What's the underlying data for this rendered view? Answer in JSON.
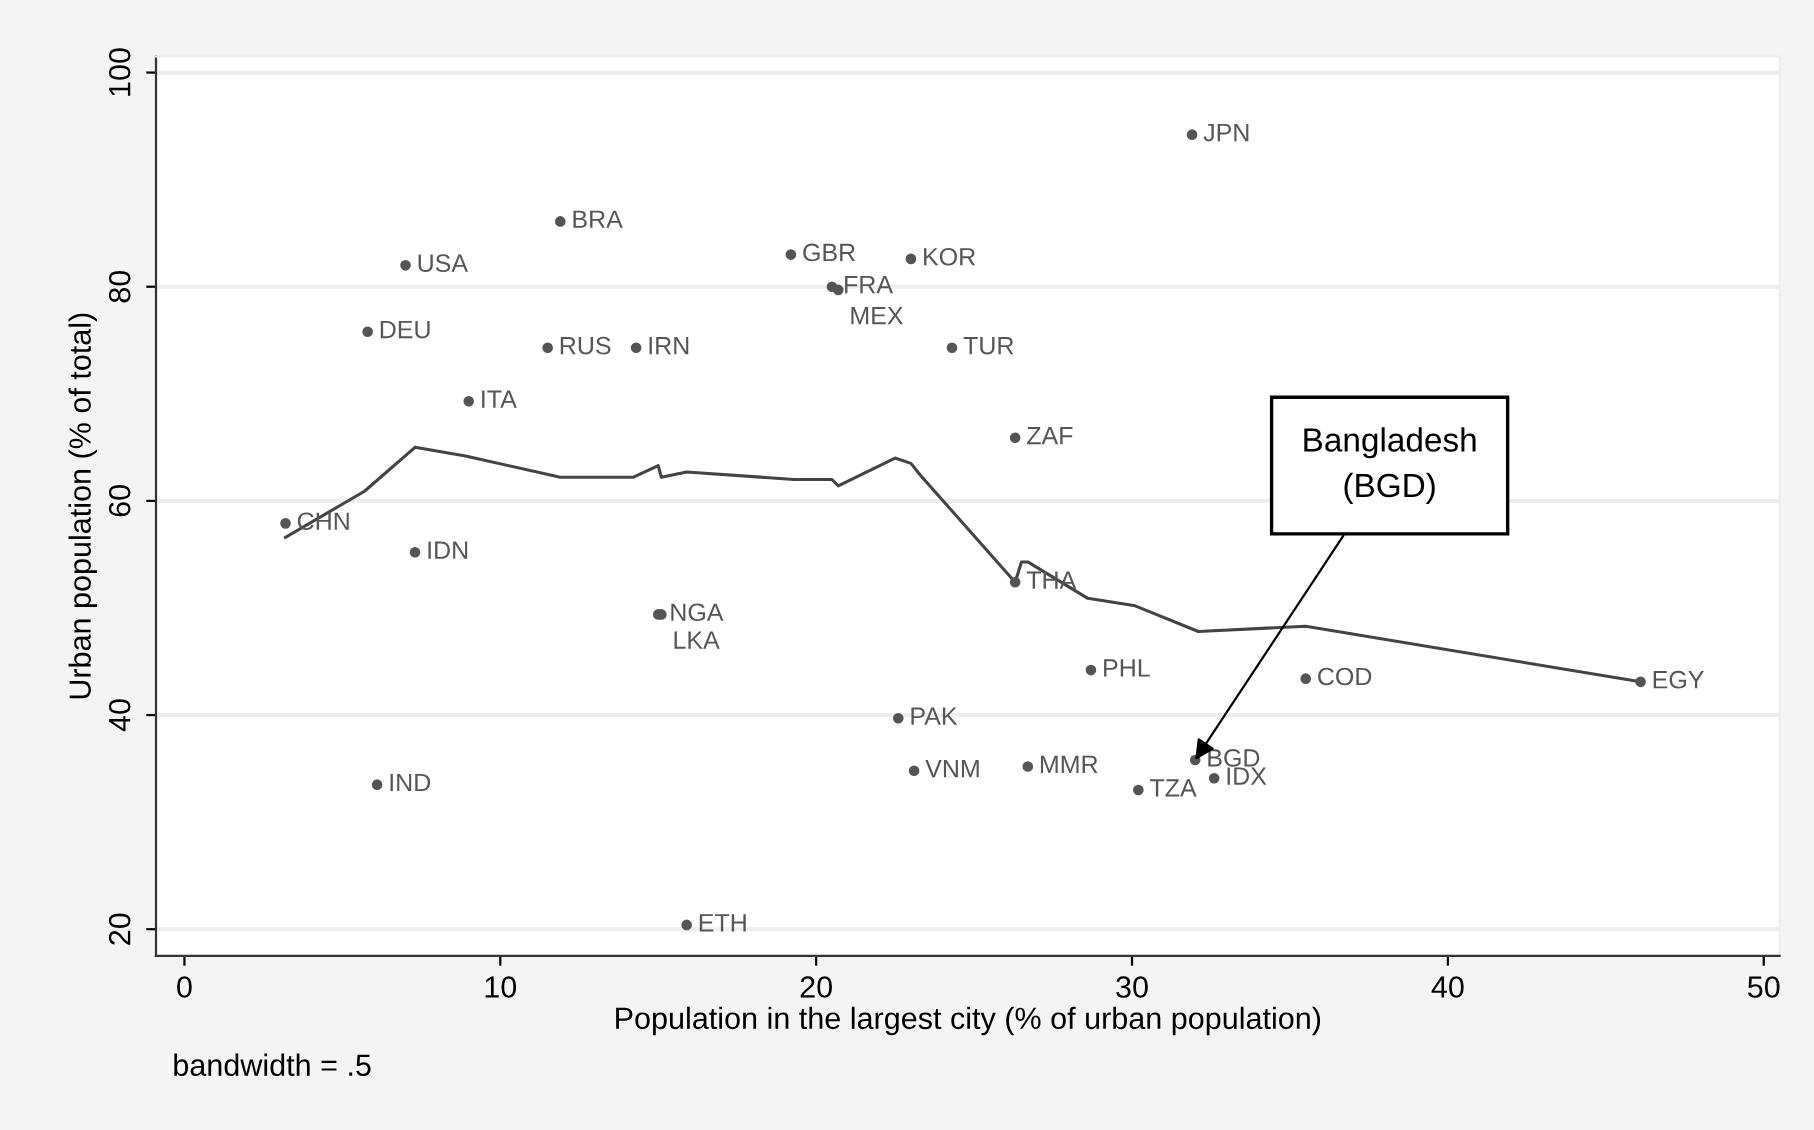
{
  "chart_data": {
    "type": "scatter",
    "xlabel": "Population in the largest city (% of urban population)",
    "ylabel": "Urban population (% of total)",
    "xlim": [
      -0.9,
      50.5
    ],
    "ylim": [
      17.5,
      101.5
    ],
    "xticks": [
      0,
      10,
      20,
      30,
      40,
      50
    ],
    "yticks": [
      20,
      40,
      60,
      80,
      100
    ],
    "grid": "y",
    "marker": "circle",
    "series": [
      {
        "color": "#555555",
        "x": [
          31.9,
          11.9,
          7.0,
          19.2,
          23.0,
          20.5,
          20.7,
          5.8,
          11.5,
          14.3,
          24.3,
          9.0,
          26.3,
          3.2,
          7.3,
          15.0,
          15.1,
          26.3,
          28.7,
          35.5,
          46.1,
          32.0,
          32.6,
          30.2,
          26.7,
          23.1,
          22.6,
          6.1,
          15.9
        ],
        "values": [
          94.2,
          86.1,
          82.0,
          83.0,
          82.6,
          80.0,
          79.7,
          75.8,
          74.3,
          74.3,
          74.3,
          69.3,
          65.9,
          57.9,
          55.2,
          49.4,
          49.4,
          52.4,
          44.2,
          43.4,
          43.1,
          35.8,
          34.1,
          33.0,
          35.2,
          34.8,
          39.7,
          33.5,
          20.4
        ],
        "value_labels": [
          "JPN",
          "BRA",
          "USA",
          "GBR",
          "KOR",
          "FRA",
          "MEX",
          "DEU",
          "RUS",
          "IRN",
          "TUR",
          "ITA",
          "ZAF",
          "CHN",
          "IDN",
          "NGA",
          "LKA",
          "THA",
          "PHL",
          "COD",
          "EGY",
          "BGD",
          "IDX",
          "TZA",
          "MMR",
          "VNM",
          "PAK",
          "IND",
          "ETH"
        ]
      },
      {
        "type": "line",
        "color": "#444444",
        "marker": "none",
        "x": [
          3.2,
          5.7,
          7.3,
          8.9,
          11.9,
          14.2,
          15.0,
          15.1,
          15.9,
          19.3,
          20.5,
          20.7,
          22.5,
          23.0,
          23.3,
          26.3,
          26.5,
          26.7,
          28.6,
          30.1,
          32.1,
          35.5,
          46.1
        ],
        "values": [
          56.6,
          60.9,
          65.0,
          64.2,
          62.2,
          62.2,
          63.3,
          62.2,
          62.7,
          62.0,
          62.0,
          61.4,
          64.0,
          63.5,
          62.4,
          52.4,
          54.3,
          54.3,
          50.9,
          50.2,
          47.8,
          48.3,
          43.1
        ]
      }
    ],
    "annotations": [
      {
        "text": "Bangladesh\n(BGD)",
        "x": 32.0,
        "y": 35.8
      },
      "bandwidth = .5"
    ]
  }
}
